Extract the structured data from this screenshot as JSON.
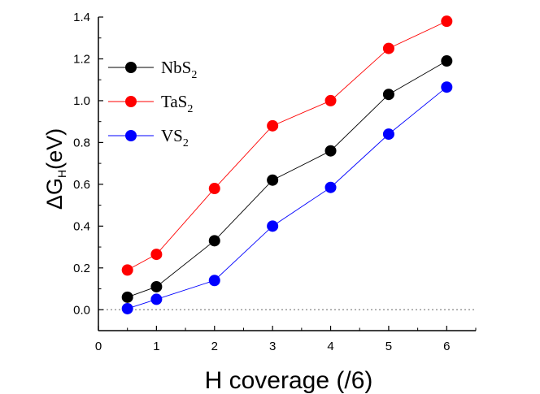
{
  "chart_data": {
    "type": "line",
    "title": "",
    "xlabel": "H coverage (/6)",
    "ylabel": {
      "delta": "Δ",
      "main": "G",
      "sub": "H",
      "rest": "(eV)"
    },
    "xlim": [
      0,
      6.5
    ],
    "ylim": [
      -0.1,
      1.4
    ],
    "xticks": [
      0,
      1,
      2,
      3,
      4,
      5,
      6
    ],
    "yticks": [
      0.0,
      0.2,
      0.4,
      0.6,
      0.8,
      1.0,
      1.2,
      1.4
    ],
    "xtick_labels": [
      "0",
      "1",
      "2",
      "3",
      "4",
      "5",
      "6"
    ],
    "ytick_labels": [
      "0.0",
      "0.2",
      "0.4",
      "0.6",
      "0.8",
      "1.0",
      "1.2",
      "1.4"
    ],
    "reference_line": {
      "y": 0.0,
      "style": "dotted"
    },
    "legend_position": "top-left",
    "x": [
      0.5,
      1,
      2,
      3,
      4,
      5,
      6
    ],
    "series": [
      {
        "name": "NbS2",
        "label_main": "NbS",
        "label_sub": "2",
        "color": "#000000",
        "values": [
          0.06,
          0.11,
          0.33,
          0.62,
          0.76,
          1.03,
          1.19
        ]
      },
      {
        "name": "TaS2",
        "label_main": "TaS",
        "label_sub": "2",
        "color": "#ff0000",
        "values": [
          0.19,
          0.265,
          0.58,
          0.88,
          1.0,
          1.25,
          1.38
        ]
      },
      {
        "name": "VS2",
        "label_main": "VS",
        "label_sub": "2",
        "color": "#0000ff",
        "values": [
          0.005,
          0.05,
          0.14,
          0.4,
          0.585,
          0.84,
          1.065
        ]
      }
    ]
  }
}
